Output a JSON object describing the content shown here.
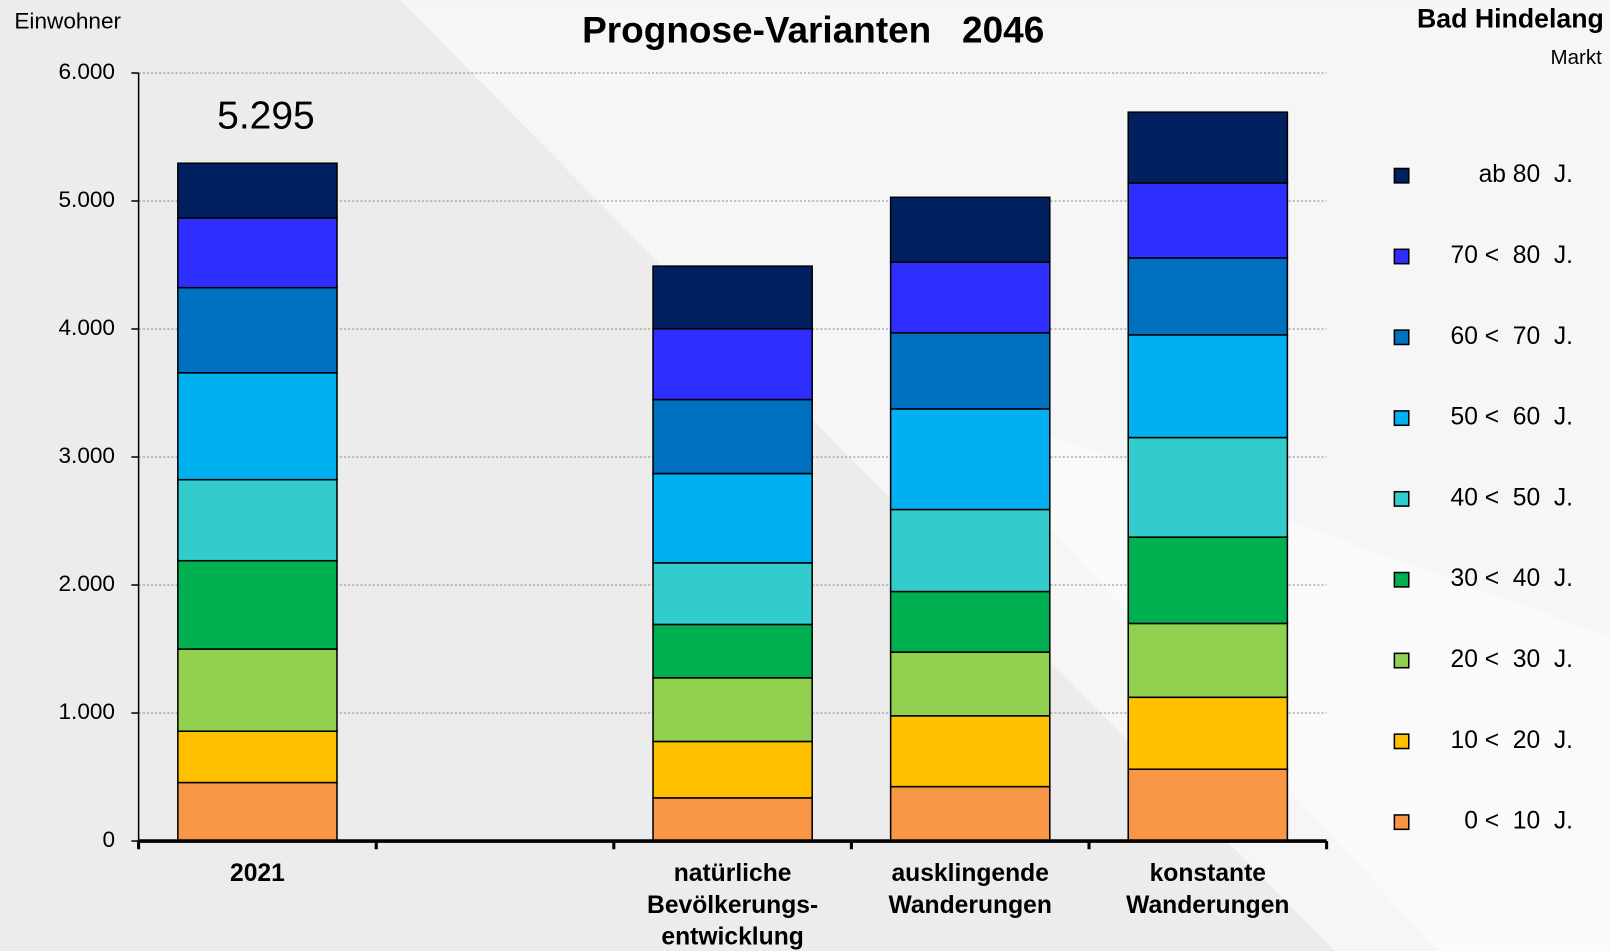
{
  "chart_data": {
    "type": "stacked_bar",
    "title": "Prognose-Varianten   2046",
    "y_label": "Einwohner",
    "location": "Bad Hindelang",
    "location_type": "Markt",
    "annotation": "5.295",
    "categories": [
      "2021",
      null,
      "natürliche Bevölkerungs-entwicklung",
      "ausklingende Wanderungen",
      "konstante Wanderungen"
    ],
    "series": [
      {
        "name": "0 <  10  J.",
        "color": "#f79646",
        "values": [
          457,
          null,
          337,
          425,
          561
        ]
      },
      {
        "name": "10 <  20  J.",
        "color": "#ffc000",
        "values": [
          401,
          null,
          441,
          553,
          562
        ]
      },
      {
        "name": "20 <  30  J.",
        "color": "#92d050",
        "values": [
          642,
          null,
          497,
          498,
          577
        ]
      },
      {
        "name": "30 <  40  J.",
        "color": "#00b050",
        "values": [
          690,
          null,
          417,
          473,
          674
        ]
      },
      {
        "name": "40 <  50  J.",
        "color": "#33cccc",
        "values": [
          633,
          null,
          481,
          641,
          778
        ]
      },
      {
        "name": "50 <  60  J.",
        "color": "#00b0f0",
        "values": [
          835,
          null,
          698,
          786,
          802
        ]
      },
      {
        "name": "60 <  70  J.",
        "color": "#0070c0",
        "values": [
          665,
          null,
          578,
          594,
          601
        ]
      },
      {
        "name": "70 <  80  J.",
        "color": "#2e2eff",
        "values": [
          545,
          null,
          553,
          553,
          586
        ]
      },
      {
        "name": "ab 80  J.",
        "color": "#002060",
        "values": [
          427,
          null,
          489,
          506,
          553
        ]
      }
    ],
    "ylim": [
      0,
      6000
    ],
    "yticks": [
      0,
      {
        "value": 1000,
        "label": "1.000"
      },
      {
        "value": 2000,
        "label": "2.000"
      },
      {
        "value": 3000,
        "label": "3.000"
      },
      {
        "value": 4000,
        "label": "4.000"
      },
      {
        "value": 5000,
        "label": "5.000"
      },
      {
        "value": 6000,
        "label": "6.000"
      }
    ],
    "grid": true
  }
}
